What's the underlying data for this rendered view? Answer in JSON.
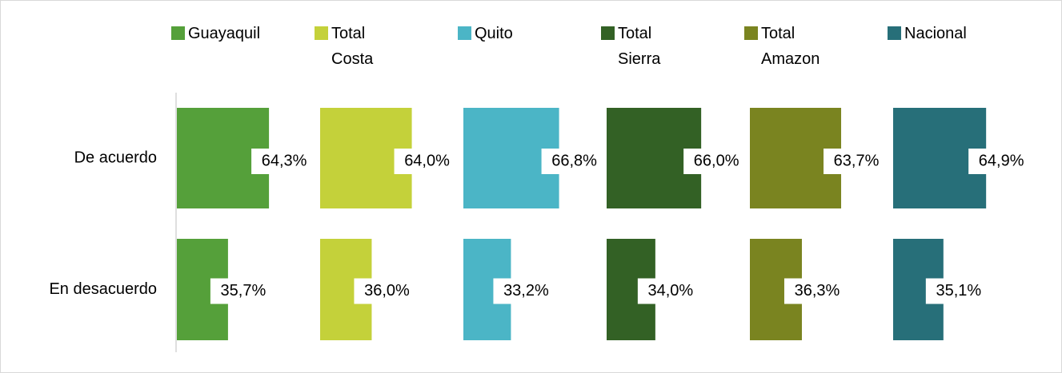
{
  "chart_data": {
    "type": "bar",
    "categories": [
      "De acuerdo",
      "En desacuerdo"
    ],
    "xlim": [
      0,
      100
    ],
    "series": [
      {
        "name": "Guayaquil",
        "color": "#55a03a",
        "values": [
          64.3,
          35.7
        ],
        "value_labels": [
          "64,3%",
          "35,7%"
        ]
      },
      {
        "name": "Total Costa",
        "color": "#c4d13a",
        "values": [
          64.0,
          36.0
        ],
        "value_labels": [
          "64,0%",
          "36,0%"
        ]
      },
      {
        "name": "Quito",
        "color": "#4bb5c6",
        "values": [
          66.8,
          33.2
        ],
        "value_labels": [
          "66,8%",
          "33,2%"
        ]
      },
      {
        "name": "Total Sierra",
        "color": "#336125",
        "values": [
          66.0,
          34.0
        ],
        "value_labels": [
          "66,0%",
          "34,0%"
        ]
      },
      {
        "name": "Total Amazon",
        "color": "#7a8420",
        "values": [
          63.7,
          36.3
        ],
        "value_labels": [
          "63,7%",
          "36,3%"
        ]
      },
      {
        "name": "Nacional",
        "color": "#276f79",
        "values": [
          64.9,
          35.1
        ],
        "value_labels": [
          "64,9%",
          "35,1%"
        ]
      }
    ]
  }
}
